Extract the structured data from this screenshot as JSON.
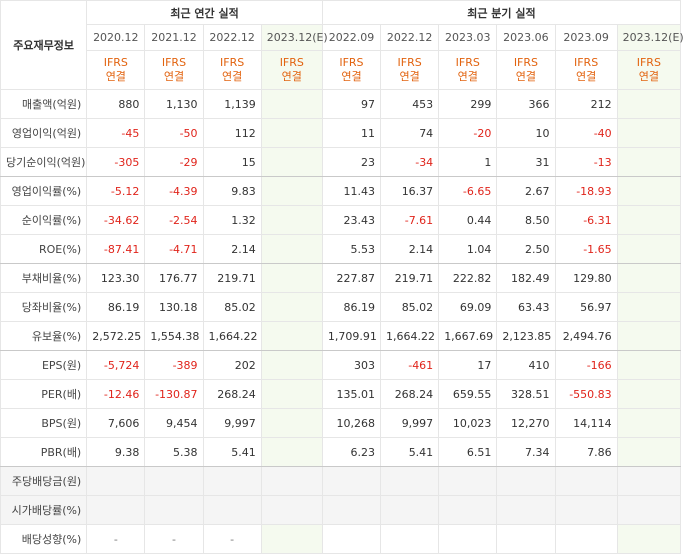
{
  "header": {
    "label": "주요재무정보",
    "annual": "최근 연간 실적",
    "quarterly": "최근 분기 실적"
  },
  "columns": [
    {
      "period": "2020.12",
      "basis": "IFRS",
      "scope": "연결"
    },
    {
      "period": "2021.12",
      "basis": "IFRS",
      "scope": "연결"
    },
    {
      "period": "2022.12",
      "basis": "IFRS",
      "scope": "연결"
    },
    {
      "period": "2023.12(E)",
      "basis": "IFRS",
      "scope": "연결"
    },
    {
      "period": "2022.09",
      "basis": "IFRS",
      "scope": "연결"
    },
    {
      "period": "2022.12",
      "basis": "IFRS",
      "scope": "연결"
    },
    {
      "period": "2023.03",
      "basis": "IFRS",
      "scope": "연결"
    },
    {
      "period": "2023.06",
      "basis": "IFRS",
      "scope": "연결"
    },
    {
      "period": "2023.09",
      "basis": "IFRS",
      "scope": "연결"
    },
    {
      "period": "2023.12(E)",
      "basis": "IFRS",
      "scope": "연결"
    }
  ],
  "rows": [
    {
      "label": "매출액(억원)",
      "values": [
        "880",
        "1,130",
        "1,139",
        null,
        "97",
        "453",
        "299",
        "366",
        "212",
        null
      ]
    },
    {
      "label": "영업이익(억원)",
      "values": [
        "-45",
        "-50",
        "112",
        null,
        "11",
        "74",
        "-20",
        "10",
        "-40",
        null
      ]
    },
    {
      "label": "당기순이익(억원)",
      "values": [
        "-305",
        "-29",
        "15",
        null,
        "23",
        "-34",
        "1",
        "31",
        "-13",
        null
      ]
    },
    {
      "label": "영업이익률(%)",
      "values": [
        "-5.12",
        "-4.39",
        "9.83",
        null,
        "11.43",
        "16.37",
        "-6.65",
        "2.67",
        "-18.93",
        null
      ]
    },
    {
      "label": "순이익률(%)",
      "values": [
        "-34.62",
        "-2.54",
        "1.32",
        null,
        "23.43",
        "-7.61",
        "0.44",
        "8.50",
        "-6.31",
        null
      ]
    },
    {
      "label": "ROE(%)",
      "values": [
        "-87.41",
        "-4.71",
        "2.14",
        null,
        "5.53",
        "2.14",
        "1.04",
        "2.50",
        "-1.65",
        null
      ]
    },
    {
      "label": "부채비율(%)",
      "values": [
        "123.30",
        "176.77",
        "219.71",
        null,
        "227.87",
        "219.71",
        "222.82",
        "182.49",
        "129.80",
        null
      ]
    },
    {
      "label": "당좌비율(%)",
      "values": [
        "86.19",
        "130.18",
        "85.02",
        null,
        "86.19",
        "85.02",
        "69.09",
        "63.43",
        "56.97",
        null
      ]
    },
    {
      "label": "유보율(%)",
      "values": [
        "2,572.25",
        "1,554.38",
        "1,664.22",
        null,
        "1,709.91",
        "1,664.22",
        "1,667.69",
        "2,123.85",
        "2,494.76",
        null
      ]
    },
    {
      "label": "EPS(원)",
      "values": [
        "-5,724",
        "-389",
        "202",
        null,
        "303",
        "-461",
        "17",
        "410",
        "-166",
        null
      ]
    },
    {
      "label": "PER(배)",
      "values": [
        "-12.46",
        "-130.87",
        "268.24",
        null,
        "135.01",
        "268.24",
        "659.55",
        "328.51",
        "-550.83",
        null
      ]
    },
    {
      "label": "BPS(원)",
      "values": [
        "7,606",
        "9,454",
        "9,997",
        null,
        "10,268",
        "9,997",
        "10,023",
        "12,270",
        "14,114",
        null
      ]
    },
    {
      "label": "PBR(배)",
      "values": [
        "9.38",
        "5.38",
        "5.41",
        null,
        "6.23",
        "5.41",
        "6.51",
        "7.34",
        "7.86",
        null
      ]
    },
    {
      "label": "주당배당금(원)",
      "values": [
        null,
        null,
        null,
        null,
        null,
        null,
        null,
        null,
        null,
        null
      ]
    },
    {
      "label": "시가배당률(%)",
      "values": [
        null,
        null,
        null,
        null,
        null,
        null,
        null,
        null,
        null,
        null
      ]
    },
    {
      "label": "배당성향(%)",
      "values": [
        "-",
        "-",
        "-",
        null,
        null,
        null,
        null,
        null,
        null,
        null
      ]
    }
  ]
}
